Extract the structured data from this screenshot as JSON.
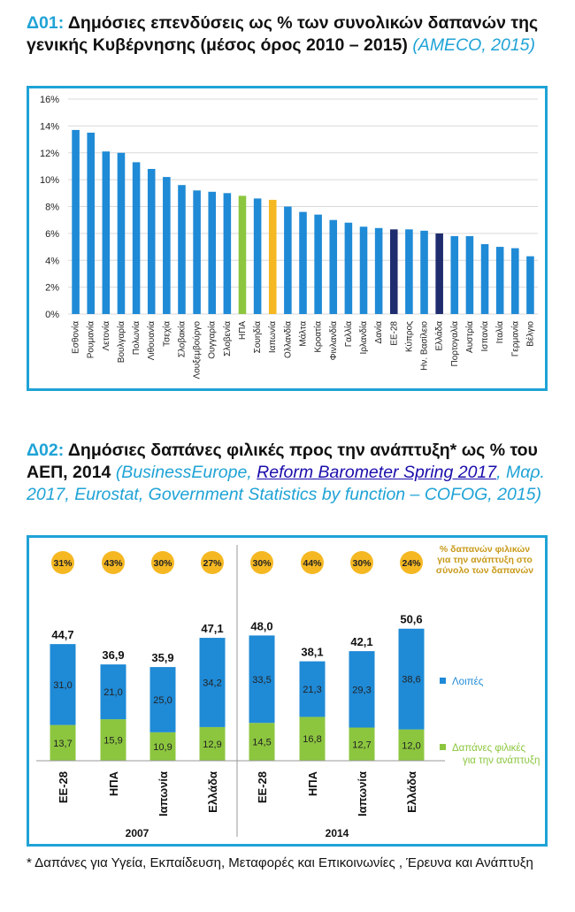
{
  "chart1": {
    "code": "Δ01:",
    "title": "Δημόσιες επενδύσεις ως % των συνολικών δαπανών της γενικής Κυβέρνησης (μέσος όρος 2010 – 2015)",
    "source": "(AMECO, 2015)"
  },
  "chart2": {
    "code": "Δ02:",
    "title": "Δημόσιες δαπάνες φιλικές προς την ανάπτυξη* ως % του ΑΕΠ, 2014",
    "source_pre": "(BusinessEurope, ",
    "source_link": "Reform Barometer Spring 2017",
    "source_post": ", Μαρ. 2017, Eurostat, Government Statistics by function – COFOG, 2015)"
  },
  "footnote": "* Δαπάνες για Υγεία, Εκπαίδευση, Μεταφορές και Επικοινωνίες , Έρευνα και Ανάπτυξη",
  "chart_data": [
    {
      "type": "bar",
      "title": "",
      "xlabel": "",
      "ylabel": "",
      "ylim": [
        0,
        16
      ],
      "yticks": [
        "0%",
        "2%",
        "4%",
        "6%",
        "8%",
        "10%",
        "12%",
        "14%",
        "16%"
      ],
      "grid": true,
      "categories": [
        "Εσθονία",
        "Ρουμανία",
        "Λετονία",
        "Βουλγαρία",
        "Πολωνία",
        "Λιθουανία",
        "Τσεχία",
        "Σλοβακία",
        "Λουξεμβούργο",
        "Ουγγαρία",
        "Σλοβενία",
        "ΗΠΑ",
        "Σουηδία",
        "Ιαπωνία",
        "Ολλανδία",
        "Μάλτα",
        "Κροατία",
        "Φινλανδία",
        "Γαλλία",
        "Ιρλανδία",
        "Δανία",
        "ΕΕ-28",
        "Κύπρος",
        "Ην. Βασίλειο",
        "Ελλάδα",
        "Πορτογαλία",
        "Αυστρία",
        "Ισπανία",
        "Ιταλία",
        "Γερμανία",
        "Βέλγιο"
      ],
      "values": [
        13.7,
        13.5,
        12.1,
        12.0,
        11.3,
        10.8,
        10.2,
        9.6,
        9.2,
        9.1,
        9.0,
        8.8,
        8.6,
        8.5,
        8.0,
        7.6,
        7.4,
        7.0,
        6.8,
        6.5,
        6.4,
        6.3,
        6.3,
        6.2,
        6.0,
        5.8,
        5.8,
        5.2,
        5.0,
        4.9,
        4.3
      ],
      "colors": {
        "default": "#1f8ad6",
        "ΗΠΑ": "#8cc63f",
        "Ιαπωνία": "#f5b822",
        "ΕΕ-28": "#1f2d6e",
        "Ελλάδα": "#1f2d6e"
      }
    },
    {
      "type": "bar",
      "stacked": true,
      "title": "",
      "groups": [
        {
          "label": "2007",
          "categories": [
            "ΕΕ-28",
            "ΗΠΑ",
            "Ιαπωνία",
            "Ελλάδα"
          ],
          "totals": [
            "44,7",
            "36,9",
            "35,9",
            "47,1"
          ],
          "shares": [
            "31%",
            "43%",
            "30%",
            "27%"
          ]
        },
        {
          "label": "2014",
          "categories": [
            "ΕΕ-28",
            "ΗΠΑ",
            "Ιαπωνία",
            "Ελλάδα"
          ],
          "totals": [
            "48,0",
            "38,1",
            "42,1",
            "50,6"
          ],
          "shares": [
            "30%",
            "44%",
            "30%",
            "24%"
          ]
        }
      ],
      "series": [
        {
          "name": "Δαπάνες φιλικές για την ανάπτυξη",
          "color": "#8cc63f",
          "values": [
            13.7,
            15.9,
            10.9,
            12.9,
            14.5,
            16.8,
            12.7,
            12.0
          ],
          "labels": [
            "13,7",
            "15,9",
            "10,9",
            "12,9",
            "14,5",
            "16,8",
            "12,7",
            "12,0"
          ]
        },
        {
          "name": "Λοιπές",
          "color": "#1f8ad6",
          "values": [
            31.0,
            21.0,
            25.0,
            34.2,
            33.5,
            21.3,
            29.3,
            38.6
          ],
          "labels": [
            "31,0",
            "21,0",
            "25,0",
            "34,2",
            "33,5",
            "21,3",
            "29,3",
            "38,6"
          ]
        }
      ],
      "share_label": "% δαπανών φιλικών για την ανάπτυξη στο σύνολο των δαπανών",
      "share_color": "#f5b822",
      "legend_position": "right"
    }
  ]
}
